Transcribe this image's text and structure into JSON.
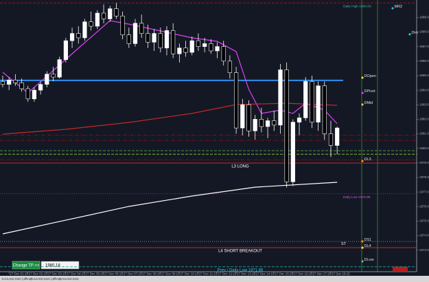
{
  "chart_data": {
    "type": "candlestick",
    "ylim": [
      1971.52,
      1990.2
    ],
    "xlim": [
      -0.43,
      53.96
    ],
    "yticks": [
      {
        "value": 1973,
        "label": "1973.00"
      },
      {
        "value": 1974,
        "label": "1974.00"
      },
      {
        "value": 1975,
        "label": "1975.00"
      },
      {
        "value": 1976,
        "label": "1976.00"
      },
      {
        "value": 1977,
        "label": "1977.00"
      },
      {
        "value": 1978,
        "label": "1978.00"
      },
      {
        "value": 1979,
        "label": "1979.00"
      },
      {
        "value": 1980,
        "label": "1980.00"
      },
      {
        "value": 1981,
        "label": "1981.00"
      },
      {
        "value": 1982,
        "label": "1982.00"
      },
      {
        "value": 1983,
        "label": "1983.00"
      },
      {
        "value": 1984,
        "label": "1984.00"
      },
      {
        "value": 1985,
        "label": "1985.00"
      },
      {
        "value": 1986,
        "label": "1986.00"
      },
      {
        "value": 1987,
        "label": "1987.00"
      },
      {
        "value": 1988,
        "label": "1988.00"
      },
      {
        "value": 1989,
        "label": "1989.00"
      }
    ],
    "xticks": [
      {
        "value": 1,
        "label": "27 Dec 01:15"
      },
      {
        "value": 4,
        "label": "27 Dec 02:15"
      },
      {
        "value": 7,
        "label": "27 Dec 03:15"
      },
      {
        "value": 10,
        "label": "27 Dec 04:15"
      },
      {
        "value": 13,
        "label": "27 Dec 05:15"
      },
      {
        "value": 16,
        "label": "27 Dec 06:15"
      },
      {
        "value": 19,
        "label": "27 Dec 07:15"
      },
      {
        "value": 22,
        "label": "27 Dec 08:15"
      },
      {
        "value": 25,
        "label": "27 Dec 09:15"
      },
      {
        "value": 28,
        "label": "27 Dec 10:15"
      },
      {
        "value": 31,
        "label": "27 Dec 11:15"
      },
      {
        "value": 34,
        "label": "27 Dec 12:15"
      },
      {
        "value": 37,
        "label": "27 Dec 13:15"
      },
      {
        "value": 40,
        "label": "27 Dec 14:15"
      },
      {
        "value": 43,
        "label": "27 Dec 15:15"
      },
      {
        "value": 46,
        "label": "27 Dec 16:15"
      },
      {
        "value": 49,
        "label": "27 Dec 17:15"
      },
      {
        "value": 52,
        "label": "27 Dec 18:15"
      }
    ],
    "candles": {
      "open": [
        1984.6,
        1984.4,
        1984.7,
        1984.5,
        1984.1,
        1983.4,
        1984.0,
        1984.4,
        1985.1,
        1984.9,
        1986.1,
        1987.4,
        1987.9,
        1987.6,
        1988.7,
        1988.4,
        1989.3,
        1988.9,
        1989.6,
        1989.1,
        1987.8,
        1987.2,
        1988.6,
        1987.9,
        1987.3,
        1987.9,
        1986.9,
        1988.1,
        1986.5,
        1986.9,
        1986.6,
        1987.4,
        1987.0,
        1987.2,
        1986.7,
        1987.0,
        1986.0,
        1985.2,
        1981.4,
        1983.0,
        1981.2,
        1982.0,
        1981.5,
        1981.9,
        1981.6,
        1985.4,
        1977.7,
        1981.8,
        1982.1,
        1984.6,
        1981.8,
        1984.3,
        1981.0,
        1980.2
      ],
      "high": [
        1985.0,
        1984.9,
        1985.1,
        1984.8,
        1984.3,
        1984.2,
        1984.6,
        1985.3,
        1985.6,
        1986.3,
        1987.6,
        1988.3,
        1988.4,
        1988.9,
        1989.4,
        1989.5,
        1989.9,
        1989.8,
        1990.0,
        1989.4,
        1988.3,
        1988.9,
        1989.2,
        1988.5,
        1988.2,
        1988.3,
        1988.4,
        1988.6,
        1987.2,
        1987.4,
        1987.7,
        1987.9,
        1987.6,
        1987.5,
        1987.3,
        1987.4,
        1986.4,
        1985.6,
        1983.4,
        1983.3,
        1982.3,
        1982.8,
        1982.1,
        1982.6,
        1985.8,
        1985.9,
        1982.0,
        1982.4,
        1984.9,
        1985.0,
        1984.6,
        1984.6,
        1981.9,
        1981.5
      ],
      "low": [
        1984.2,
        1984.0,
        1984.3,
        1983.9,
        1983.2,
        1983.2,
        1983.7,
        1984.2,
        1984.6,
        1984.8,
        1985.9,
        1986.9,
        1987.2,
        1987.4,
        1988.1,
        1988.2,
        1988.6,
        1988.7,
        1988.9,
        1987.5,
        1986.9,
        1987.0,
        1987.6,
        1986.9,
        1986.7,
        1986.6,
        1986.4,
        1986.2,
        1985.9,
        1986.3,
        1986.4,
        1986.7,
        1986.6,
        1986.5,
        1986.2,
        1985.7,
        1984.8,
        1981.0,
        1980.9,
        1980.8,
        1980.6,
        1981.1,
        1980.7,
        1981.2,
        1981.0,
        1977.3,
        1977.4,
        1980.9,
        1981.9,
        1981.4,
        1981.2,
        1980.6,
        1979.4,
        1979.6
      ],
      "close": [
        1984.4,
        1984.7,
        1984.5,
        1984.1,
        1983.4,
        1984.0,
        1984.4,
        1985.1,
        1984.9,
        1986.1,
        1987.4,
        1987.9,
        1987.6,
        1988.7,
        1988.4,
        1989.3,
        1988.9,
        1989.6,
        1989.1,
        1987.8,
        1987.2,
        1988.6,
        1987.9,
        1987.3,
        1987.9,
        1986.9,
        1988.1,
        1986.5,
        1986.9,
        1986.6,
        1987.4,
        1987.0,
        1987.2,
        1986.7,
        1987.0,
        1986.0,
        1985.2,
        1981.4,
        1983.0,
        1981.2,
        1982.0,
        1981.5,
        1981.9,
        1981.6,
        1985.4,
        1977.7,
        1981.8,
        1982.1,
        1984.6,
        1981.8,
        1984.3,
        1981.0,
        1980.2,
        1981.4
      ]
    },
    "series": [
      {
        "color": "#e040fb",
        "x": [
          0,
          4,
          12,
          17,
          20,
          25,
          30,
          34,
          37,
          39,
          41,
          44,
          46,
          48,
          51,
          53
        ],
        "values": [
          1985.23,
          1983.81,
          1986.89,
          1988.78,
          1988.54,
          1988.07,
          1987.6,
          1987.36,
          1986.65,
          1984.05,
          1982.4,
          1982.63,
          1982.4,
          1983.1,
          1982.63,
          1981.69
        ]
      },
      {
        "color": "#c62828",
        "x": [
          0,
          10,
          20,
          30,
          37,
          45,
          53
        ],
        "values": [
          1980.98,
          1981.31,
          1981.78,
          1982.4,
          1983.01,
          1983.1,
          1982.96
        ]
      },
      {
        "color": "#ffffff",
        "x": [
          0,
          10,
          20,
          30,
          40,
          53
        ],
        "values": [
          1974.12,
          1975.06,
          1976.01,
          1976.72,
          1977.33,
          1977.67
        ]
      }
    ],
    "levels": [
      {
        "value": 1990.0,
        "color": "#a01818",
        "style": "dashed",
        "text": "Daily High 1990.00",
        "text_color": "#2ec4b6",
        "text_pos": "right"
      },
      {
        "value": 1984.67,
        "color": "#2f8fef",
        "style": "thick"
      },
      {
        "value": 1980.9,
        "color": "#8b1010",
        "style": "dashdot"
      },
      {
        "value": 1980.55,
        "color": "#8b1010",
        "style": "dashdot"
      },
      {
        "value": 1979.84,
        "color": "#4caf50",
        "style": "dashed"
      },
      {
        "value": 1979.6,
        "color": "#9acd32",
        "style": "dashed"
      },
      {
        "value": 1979.2,
        "color": "#8b1010",
        "style": "dashdot"
      },
      {
        "value": 1978.99,
        "color": "#d32f2f",
        "style": "solid",
        "text": "L3 LONG",
        "text_color": "#ffffff",
        "text_pos": "center"
      },
      {
        "value": 1976.88,
        "color": "#9c27b0",
        "style": "dotted",
        "text": "Daily Low 1976.88",
        "text_color": "#d05ce3",
        "text_pos": "right"
      },
      {
        "value": 1973.6,
        "color": "#9e9e9e",
        "style": "dotted"
      },
      {
        "value": 1973.17,
        "color": "#d32f2f",
        "style": "solid",
        "text": "L4 SHORT BREAKOUT",
        "text_color": "#ffffff",
        "text_pos": "center"
      },
      {
        "value": 1971.86,
        "color": "#26a69a",
        "style": "dashed",
        "text": "Prev / Daily Low 1971.86",
        "text_color": "#26c6da",
        "text_pos": "center"
      }
    ],
    "pivots": [
      {
        "label": "MR2",
        "value": 1989.63,
        "color": "#26c6da",
        "lane": "mid"
      },
      {
        "label": "DHi",
        "value": 1987.84,
        "color": "#26c6da",
        "lane": "far"
      },
      {
        "label": "DOpen",
        "value": 1984.86,
        "color": "#ffeb3b",
        "lane": "near"
      },
      {
        "label": "DPivot",
        "value": 1983.81,
        "color": "#e040fb",
        "lane": "near"
      },
      {
        "label": "DMid",
        "value": 1983.01,
        "color": "#cddc39",
        "lane": "near"
      },
      {
        "label": "DL3",
        "value": 1979.13,
        "color": "#ff9800",
        "lane": "near"
      },
      {
        "label": "ST",
        "value": 1973.31,
        "color": "#ffffff",
        "lane": "inner"
      },
      {
        "label": "DS1",
        "value": 1973.6,
        "color": "#ff9800",
        "lane": "near"
      },
      {
        "label": "DL4",
        "value": 1973.17,
        "color": "#ffeb3b",
        "lane": "near"
      },
      {
        "label": "DLow",
        "value": 1972.23,
        "color": "#66bb6a",
        "lane": "near"
      }
    ],
    "button": "Change TP >>",
    "price_input": "1980.18",
    "tabs": [
      "XAUUSD,M20 (offline)",
      "XAUUSD,M15 (offline)",
      "XAUUSD,M15"
    ]
  }
}
